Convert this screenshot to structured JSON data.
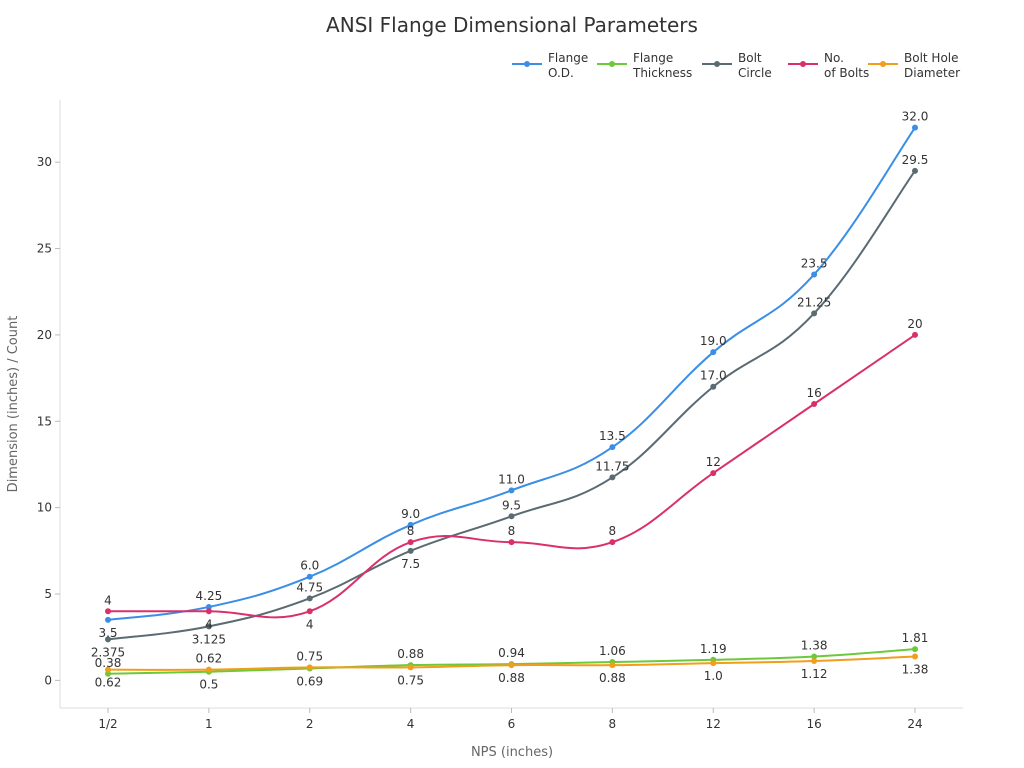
{
  "chart_data": {
    "type": "line",
    "title": "ANSI Flange Dimensional Parameters",
    "xlabel": "NPS (inches)",
    "ylabel": "Dimension (inches) / Count",
    "categories": [
      "1/2",
      "1",
      "2",
      "4",
      "6",
      "8",
      "12",
      "16",
      "24"
    ],
    "ylim": [
      -1.6,
      33.6
    ],
    "yticks": [
      0,
      5,
      10,
      15,
      20,
      25,
      30
    ],
    "grid": false,
    "legend_position": "top-right",
    "smooth": true,
    "series": [
      {
        "name": "Flange\nO.D.",
        "color": "#3a8ee6",
        "values": [
          3.5,
          4.25,
          6.0,
          9.0,
          11.0,
          13.5,
          19.0,
          23.5,
          32.0
        ],
        "labels": [
          "3.5",
          "4.25",
          "6.0",
          "9.0",
          "11.0",
          "13.5",
          "19.0",
          "23.5",
          "32.0"
        ]
      },
      {
        "name": "Flange\nThickness",
        "color": "#6cc93a",
        "values": [
          0.38,
          0.5,
          0.69,
          0.88,
          0.94,
          1.06,
          1.19,
          1.38,
          1.81
        ],
        "labels": [
          "0.38",
          "0.5",
          "0.69",
          "0.88",
          "0.94",
          "1.06",
          "1.19",
          "1.38",
          "1.81"
        ]
      },
      {
        "name": "Bolt\nCircle",
        "color": "#5a6b73",
        "values": [
          2.375,
          3.125,
          4.75,
          7.5,
          9.5,
          11.75,
          17.0,
          21.25,
          29.5
        ],
        "labels": [
          "2.375",
          "3.125",
          "4.75",
          "7.5",
          "9.5",
          "11.75",
          "17.0",
          "21.25",
          "29.5"
        ]
      },
      {
        "name": "No.\nof Bolts",
        "color": "#d9306b",
        "values": [
          4,
          4,
          4,
          8,
          8,
          8,
          12,
          16,
          20
        ],
        "labels": [
          "4",
          "4",
          "4",
          "8",
          "8",
          "8",
          "12",
          "16",
          "20"
        ]
      },
      {
        "name": "Bolt Hole\nDiameter",
        "color": "#f29d1b",
        "values": [
          0.62,
          0.62,
          0.75,
          0.75,
          0.88,
          0.88,
          1.0,
          1.12,
          1.38
        ],
        "labels": [
          "0.62",
          "0.62",
          "0.75",
          "0.75",
          "0.88",
          "0.88",
          "1.0",
          "1.12",
          "1.38"
        ]
      }
    ]
  }
}
